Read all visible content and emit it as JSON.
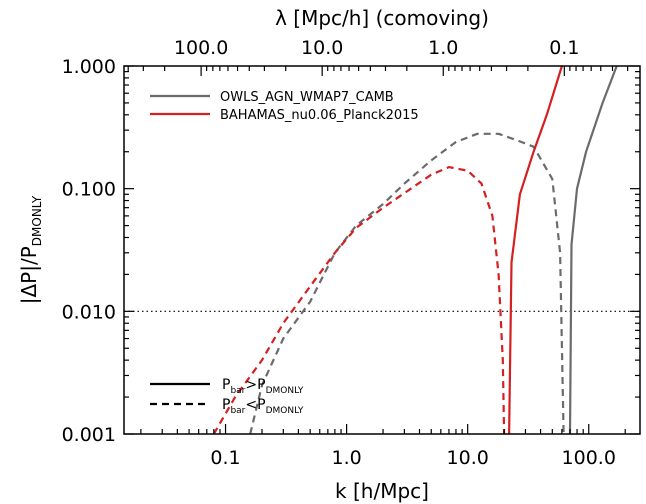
{
  "chart_data": {
    "type": "line",
    "xlabel": "k [h/Mpc]",
    "ylabel_main": "|ΔP|/P",
    "ylabel_sub": "DMONLY",
    "top_axis_label": "λ [Mpc/h] (comoving)",
    "x_scale": "log",
    "y_scale": "log",
    "xlim": [
      0.0145,
      265
    ],
    "ylim": [
      0.001,
      1.0
    ],
    "x_ticks": [
      {
        "value": 0.1,
        "label": "0.1"
      },
      {
        "value": 1,
        "label": "1.0"
      },
      {
        "value": 10,
        "label": "10.0"
      },
      {
        "value": 100,
        "label": "100.0"
      }
    ],
    "y_ticks": [
      {
        "value": 0.001,
        "label": "0.001"
      },
      {
        "value": 0.01,
        "label": "0.010"
      },
      {
        "value": 0.1,
        "label": "0.100"
      },
      {
        "value": 1.0,
        "label": "1.000"
      }
    ],
    "top_ticks": [
      {
        "lambda": 100,
        "label": "100.0"
      },
      {
        "lambda": 10,
        "label": "10.0"
      },
      {
        "lambda": 1,
        "label": "1.0"
      },
      {
        "lambda": 0.1,
        "label": "0.1"
      }
    ],
    "reference_line": {
      "y": 0.01,
      "style": "dotted"
    },
    "series": [
      {
        "name": "OWLS_AGN_WMAP7_CAMB",
        "color": "#6b6b6b",
        "segments": [
          {
            "style": "dashed",
            "points": [
              [
                0.16,
                0.001
              ],
              [
                0.2,
                0.0025
              ],
              [
                0.3,
                0.006
              ],
              [
                0.5,
                0.012
              ],
              [
                0.8,
                0.03
              ],
              [
                1.2,
                0.05
              ],
              [
                2,
                0.075
              ],
              [
                3,
                0.11
              ],
              [
                5,
                0.17
              ],
              [
                8,
                0.24
              ],
              [
                12,
                0.28
              ],
              [
                18,
                0.28
              ],
              [
                25,
                0.25
              ],
              [
                35,
                0.22
              ],
              [
                50,
                0.12
              ],
              [
                58,
                0.03
              ],
              [
                62,
                0.001
              ]
            ]
          },
          {
            "style": "solid",
            "points": [
              [
                70,
                0.001
              ],
              [
                72,
                0.035
              ],
              [
                80,
                0.1
              ],
              [
                95,
                0.2
              ],
              [
                130,
                0.5
              ],
              [
                170,
                1.0
              ]
            ]
          }
        ]
      },
      {
        "name": "BAHAMAS_nu0.06_Planck2015",
        "color": "#d42020",
        "segments": [
          {
            "style": "dashed",
            "points": [
              [
                0.08,
                0.001
              ],
              [
                0.12,
                0.002
              ],
              [
                0.2,
                0.004
              ],
              [
                0.3,
                0.008
              ],
              [
                0.5,
                0.016
              ],
              [
                0.8,
                0.03
              ],
              [
                1.2,
                0.048
              ],
              [
                2,
                0.07
              ],
              [
                3,
                0.092
              ],
              [
                5,
                0.13
              ],
              [
                7,
                0.15
              ],
              [
                10,
                0.14
              ],
              [
                13,
                0.11
              ],
              [
                16,
                0.06
              ],
              [
                18,
                0.02
              ],
              [
                19.5,
                0.004
              ],
              [
                20,
                0.001
              ]
            ]
          },
          {
            "style": "solid",
            "points": [
              [
                22,
                0.001
              ],
              [
                23,
                0.025
              ],
              [
                27,
                0.09
              ],
              [
                35,
                0.2
              ],
              [
                45,
                0.4
              ],
              [
                60,
                1.0
              ]
            ]
          }
        ]
      }
    ],
    "legend": {
      "position": "top-left",
      "entries": [
        {
          "label": "OWLS_AGN_WMAP7_CAMB",
          "color": "#6b6b6b"
        },
        {
          "label": "BAHAMAS_nu0.06_Planck2015",
          "color": "#d42020"
        }
      ]
    },
    "style_legend": {
      "position": "bottom-left",
      "entries": [
        {
          "style": "solid",
          "lhs": "P",
          "lhs_sub": "bar",
          "op": ">",
          "rhs": "P",
          "rhs_sub": "DMONLY"
        },
        {
          "style": "dashed",
          "lhs": "P",
          "lhs_sub": "bar",
          "op": "<",
          "rhs": "P",
          "rhs_sub": "DMONLY"
        }
      ]
    }
  }
}
